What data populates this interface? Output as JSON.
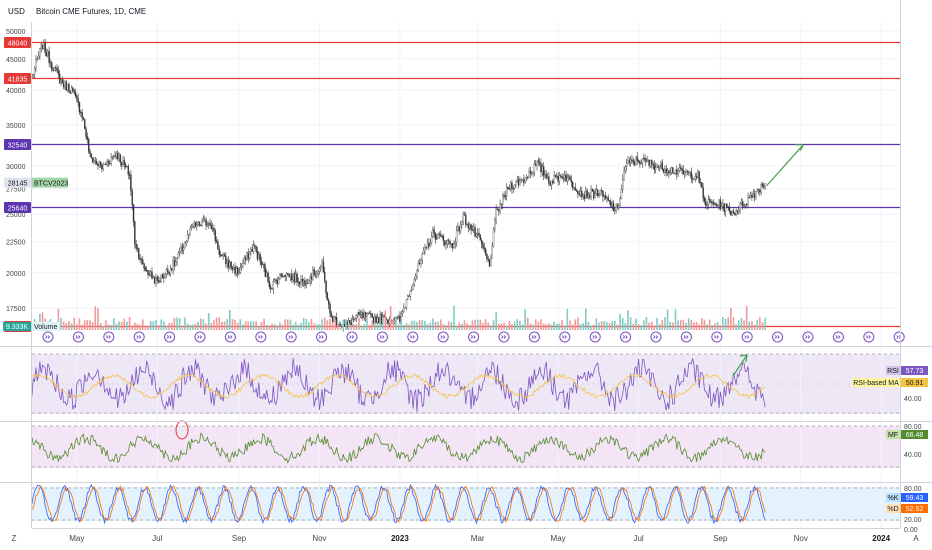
{
  "header": {
    "currency": "USD",
    "title": "Bitcoin CME Futures, 1D, CME"
  },
  "colors": {
    "up": "#26a69a",
    "down": "#ef5350",
    "candle": "#333333",
    "red_level": "#e53935",
    "purple_level": "#5e35b1",
    "arrow": "#43a047",
    "rsi": "#7e57c2",
    "rsi_ma": "#f6c343",
    "mf": "#558b2f",
    "k": "#2962ff",
    "d": "#ff6d00"
  },
  "chart_data": [
    {
      "type": "candlestick",
      "ylim": [
        15500,
        51500
      ],
      "y_ticks": [
        17500,
        20000,
        22500,
        25000,
        27500,
        30000,
        35000,
        40000,
        45000,
        50000
      ],
      "x_ticks": [
        "May",
        "Jul",
        "Sep",
        "Nov",
        "2023",
        "Mar",
        "May",
        "Jul",
        "Sep",
        "Nov",
        "2024"
      ],
      "x_axis_end_label": "A",
      "x_axis_start_label": "Z",
      "price_label": {
        "symbol": "BTCV2023",
        "value": "28145"
      },
      "horizontal_levels": [
        {
          "price": 48040,
          "label": "48040",
          "color": "red"
        },
        {
          "price": 41835,
          "label": "41835",
          "color": "red"
        },
        {
          "price": 32540,
          "label": "32540",
          "color": "purple"
        },
        {
          "price": 25640,
          "label": "25640",
          "color": "purple"
        },
        {
          "price": 16330,
          "label": "16330",
          "color": "red"
        }
      ],
      "series": [
        {
          "kind": "close-path-approx",
          "x": [
            "2022-03-28",
            "2022-04-05",
            "2022-04-12",
            "2022-04-20",
            "2022-04-27",
            "2022-05-05",
            "2022-05-11",
            "2022-05-20",
            "2022-05-31",
            "2022-06-10",
            "2022-06-14",
            "2022-06-20",
            "2022-07-01",
            "2022-07-15",
            "2022-07-28",
            "2022-08-10",
            "2022-08-18",
            "2022-08-31",
            "2022-09-12",
            "2022-09-25",
            "2022-10-05",
            "2022-10-20",
            "2022-11-03",
            "2022-11-09",
            "2022-11-20",
            "2022-12-01",
            "2022-12-15",
            "2023-01-01",
            "2023-01-13",
            "2023-01-26",
            "2023-02-10",
            "2023-02-18",
            "2023-03-03",
            "2023-03-10",
            "2023-03-15",
            "2023-03-25",
            "2023-04-05",
            "2023-04-15",
            "2023-04-25",
            "2023-05-05",
            "2023-05-20",
            "2023-06-01",
            "2023-06-15",
            "2023-06-21",
            "2023-06-30",
            "2023-07-15",
            "2023-08-01",
            "2023-08-15",
            "2023-08-20",
            "2023-09-01",
            "2023-09-11",
            "2023-09-25",
            "2023-10-05"
          ],
          "y": [
            42000,
            47500,
            44000,
            41000,
            40000,
            36500,
            31000,
            29800,
            31500,
            29000,
            22500,
            20500,
            19300,
            20800,
            23800,
            24300,
            21300,
            20000,
            22100,
            19000,
            20000,
            19300,
            20500,
            17000,
            16300,
            17000,
            16800,
            16700,
            19900,
            23200,
            22200,
            24700,
            22500,
            20500,
            25000,
            27800,
            28500,
            30200,
            28300,
            29000,
            26900,
            27100,
            25200,
            30000,
            30700,
            30000,
            29300,
            28900,
            26100,
            25900,
            25100,
            26800,
            28145
          ]
        }
      ],
      "forecast_arrow": {
        "from": {
          "x": "2023-10-06",
          "y": 27800
        },
        "to": {
          "x": "2023-11-03",
          "y": 32500
        }
      }
    },
    {
      "type": "bar",
      "name": "Volume",
      "label_value": "9.333K",
      "note": "alternating green/red daily volume bars with event markers"
    },
    {
      "type": "line",
      "name": "RSI",
      "series": [
        {
          "name": "RSI",
          "value": "57.73"
        },
        {
          "name": "RSI-based MA",
          "value": "50.91"
        }
      ],
      "y_ticks": [
        "40.00"
      ]
    },
    {
      "type": "line",
      "name": "MF",
      "series": [
        {
          "name": "MF",
          "value": "66.48"
        }
      ],
      "y_ticks": [
        "80.00",
        "40.00"
      ]
    },
    {
      "type": "line",
      "name": "Stoch",
      "series": [
        {
          "name": "%K",
          "value": "59.43"
        },
        {
          "name": "%D",
          "value": "52.52"
        }
      ],
      "y_ticks": [
        "80.00",
        "20.00",
        "0.00"
      ]
    }
  ]
}
